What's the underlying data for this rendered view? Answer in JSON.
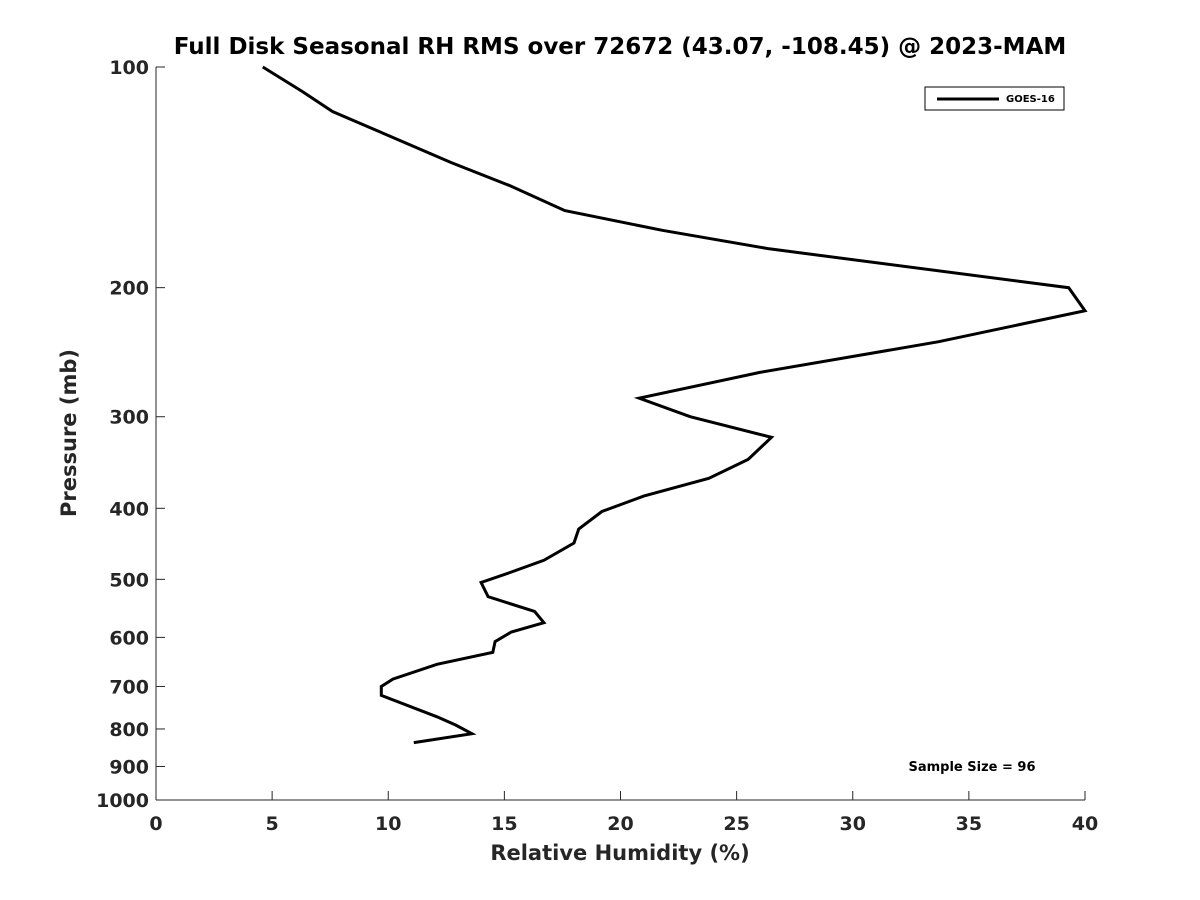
{
  "chart_data": {
    "type": "line",
    "title": "Full Disk Seasonal RH RMS over 72672 (43.07, -108.45) @ 2023-MAM",
    "xlabel": "Relative Humidity (%)",
    "ylabel": "Pressure (mb)",
    "xlim": [
      0,
      40
    ],
    "ylim": [
      100,
      1000
    ],
    "y_scale": "log",
    "y_reversed": true,
    "x_ticks": [
      "0",
      "5",
      "10",
      "15",
      "20",
      "25",
      "30",
      "35",
      "40"
    ],
    "y_ticks": [
      "100",
      "200",
      "300",
      "400",
      "500",
      "600",
      "700",
      "800",
      "900",
      "1000"
    ],
    "grid": false,
    "legend_position": "top-right",
    "annotation": "Sample Size = 96",
    "series": [
      {
        "name": "GOES-16",
        "color": "#000000",
        "points": [
          {
            "x": 4.6,
            "y": 100
          },
          {
            "x": 6.3,
            "y": 108
          },
          {
            "x": 7.6,
            "y": 115
          },
          {
            "x": 10.0,
            "y": 124
          },
          {
            "x": 12.7,
            "y": 135
          },
          {
            "x": 15.2,
            "y": 145
          },
          {
            "x": 17.6,
            "y": 157
          },
          {
            "x": 21.8,
            "y": 167
          },
          {
            "x": 26.4,
            "y": 177
          },
          {
            "x": 39.3,
            "y": 200
          },
          {
            "x": 40.0,
            "y": 215
          },
          {
            "x": 33.7,
            "y": 237
          },
          {
            "x": 26.0,
            "y": 261
          },
          {
            "x": 20.8,
            "y": 283
          },
          {
            "x": 23.0,
            "y": 300
          },
          {
            "x": 26.5,
            "y": 320
          },
          {
            "x": 25.5,
            "y": 343
          },
          {
            "x": 23.8,
            "y": 364
          },
          {
            "x": 21.0,
            "y": 385
          },
          {
            "x": 19.2,
            "y": 404
          },
          {
            "x": 18.2,
            "y": 427
          },
          {
            "x": 18.0,
            "y": 446
          },
          {
            "x": 16.7,
            "y": 471
          },
          {
            "x": 15.2,
            "y": 490
          },
          {
            "x": 14.0,
            "y": 505
          },
          {
            "x": 14.3,
            "y": 528
          },
          {
            "x": 16.3,
            "y": 553
          },
          {
            "x": 16.7,
            "y": 573
          },
          {
            "x": 15.3,
            "y": 590
          },
          {
            "x": 14.6,
            "y": 608
          },
          {
            "x": 14.5,
            "y": 629
          },
          {
            "x": 12.1,
            "y": 653
          },
          {
            "x": 10.2,
            "y": 684
          },
          {
            "x": 9.7,
            "y": 700
          },
          {
            "x": 9.7,
            "y": 720
          },
          {
            "x": 12.1,
            "y": 770
          },
          {
            "x": 12.9,
            "y": 790
          },
          {
            "x": 13.6,
            "y": 812
          },
          {
            "x": 11.1,
            "y": 835
          }
        ]
      }
    ]
  }
}
